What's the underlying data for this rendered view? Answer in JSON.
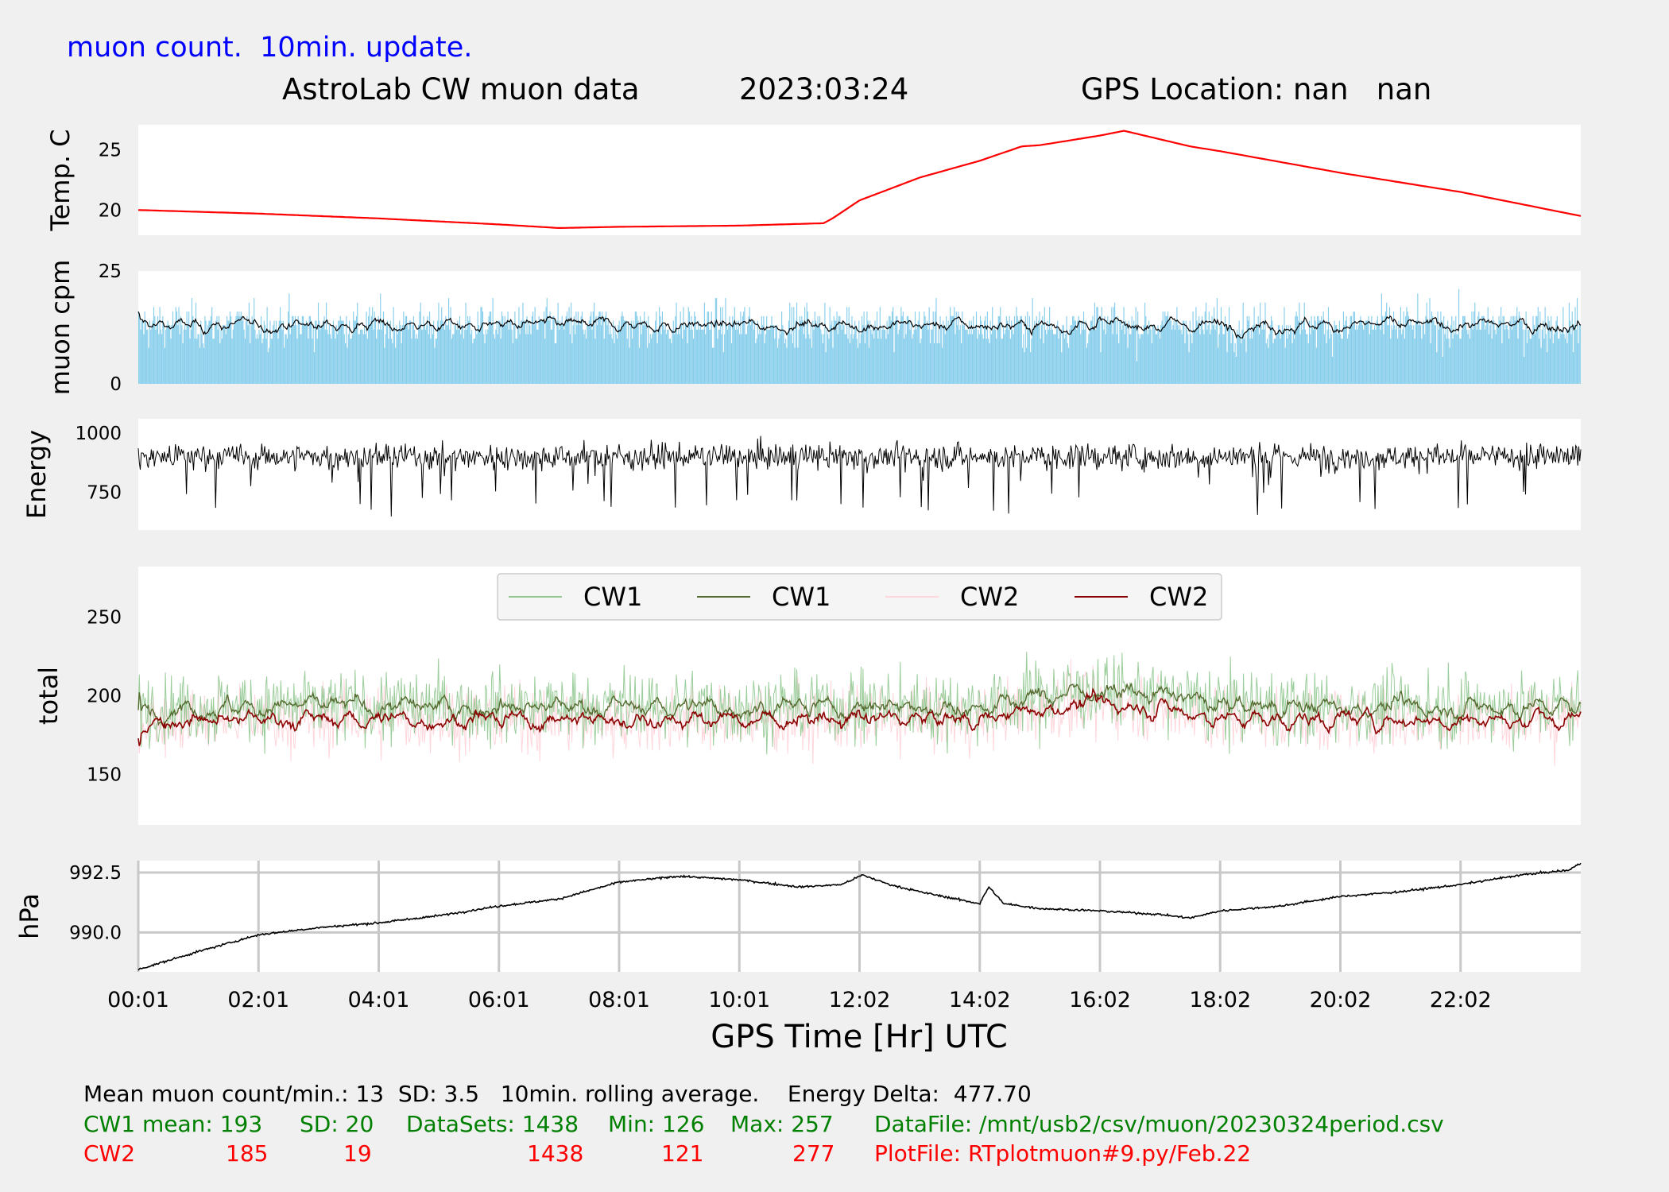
{
  "header": {
    "update_note": "muon count.  10min. update.",
    "title": "AstroLab CW muon data",
    "date": "2023:03:24",
    "gps_location": "GPS Location: nan   nan"
  },
  "chart_data": [
    {
      "type": "line",
      "ylabel": "Temp. C",
      "yticks": [
        20,
        25
      ],
      "ylim": [
        17.9,
        27.1
      ],
      "series": [
        {
          "color": "#ff0000",
          "points": [
            [
              0,
              20
            ],
            [
              2,
              19.7
            ],
            [
              4,
              19.3
            ],
            [
              6,
              18.8
            ],
            [
              7,
              18.5
            ],
            [
              8,
              18.6
            ],
            [
              10,
              18.7
            ],
            [
              11.4,
              18.9
            ],
            [
              11.55,
              19.3
            ],
            [
              12,
              20.8
            ],
            [
              13,
              22.7
            ],
            [
              14,
              24.1
            ],
            [
              14.7,
              25.3
            ],
            [
              15,
              25.4
            ],
            [
              16,
              26.2
            ],
            [
              16.4,
              26.6
            ],
            [
              17.5,
              25.3
            ],
            [
              18,
              24.9
            ],
            [
              20,
              23.1
            ],
            [
              22,
              21.5
            ],
            [
              24,
              19.5
            ]
          ]
        }
      ],
      "grid": false
    },
    {
      "type": "bar+line",
      "ylabel": "muon cpm",
      "yticks": [
        0,
        25
      ],
      "ylim": [
        0,
        25
      ],
      "series": [
        {
          "kind": "bar",
          "color": "#87ceeb",
          "mean": 13,
          "sd": 3.5,
          "n": 1438
        },
        {
          "kind": "line",
          "color": "#000000",
          "description_window": "10min. rolling average"
        }
      ],
      "grid": false
    },
    {
      "type": "line",
      "ylabel": "Energy",
      "yticks": [
        750,
        1000
      ],
      "ylim": [
        590,
        1060
      ],
      "series": [
        {
          "color": "#000000",
          "center": 900,
          "spread": 70
        }
      ],
      "grid": false
    },
    {
      "type": "line",
      "ylabel": "total",
      "yticks": [
        150,
        200,
        250
      ],
      "ylim": [
        118,
        282
      ],
      "legend": {
        "placement": "top-center",
        "entries": [
          {
            "label": "CW1",
            "color": "#90c890"
          },
          {
            "label": "CW1",
            "color": "#556b2f"
          },
          {
            "label": "CW2",
            "color": "#ffd6dc"
          },
          {
            "label": "CW2",
            "color": "#8b0000"
          }
        ]
      },
      "series": [
        {
          "name": "CW1",
          "kind": "raw",
          "color": "#90c890",
          "mean": 193,
          "sd": 20
        },
        {
          "name": "CW1",
          "kind": "average",
          "color": "#556b2f",
          "mean": 193
        },
        {
          "name": "CW2",
          "kind": "raw",
          "color": "#ffd6dc",
          "mean": 185,
          "sd": 19
        },
        {
          "name": "CW2",
          "kind": "average",
          "color": "#8b0000",
          "mean": 185
        }
      ],
      "grid": false
    },
    {
      "type": "line",
      "ylabel": "hPa",
      "yticks": [
        990.0,
        992.5
      ],
      "ytick_labels": [
        "990.0",
        "992.5"
      ],
      "ylim": [
        988.35,
        993.0
      ],
      "series": [
        {
          "color": "#000000",
          "points": [
            [
              0,
              988.45
            ],
            [
              1,
              989.2
            ],
            [
              2,
              989.9
            ],
            [
              3,
              990.2
            ],
            [
              4,
              990.4
            ],
            [
              5,
              990.7
            ],
            [
              6,
              991.1
            ],
            [
              7,
              991.4
            ],
            [
              8,
              992.1
            ],
            [
              9,
              992.35
            ],
            [
              10,
              992.2
            ],
            [
              11,
              991.9
            ],
            [
              11.7,
              992.0
            ],
            [
              12.05,
              992.4
            ],
            [
              12.5,
              992.0
            ],
            [
              13,
              991.7
            ],
            [
              14,
              991.2
            ],
            [
              14.15,
              991.9
            ],
            [
              14.4,
              991.2
            ],
            [
              15,
              991.0
            ],
            [
              16,
              990.9
            ],
            [
              17,
              990.75
            ],
            [
              17.5,
              990.6
            ],
            [
              18,
              990.9
            ],
            [
              19,
              991.1
            ],
            [
              20,
              991.5
            ],
            [
              21,
              991.7
            ],
            [
              22,
              992.0
            ],
            [
              23,
              992.4
            ],
            [
              23.8,
              992.6
            ],
            [
              24,
              992.9
            ]
          ]
        }
      ],
      "grid": true,
      "xlabel": "GPS Time  [Hr] UTC",
      "xticks": [
        "00:01",
        "02:01",
        "04:01",
        "06:01",
        "08:01",
        "10:01",
        "12:02",
        "14:02",
        "16:02",
        "18:02",
        "20:02",
        "22:02"
      ]
    }
  ],
  "footer": {
    "line1": "Mean muon count/min.: 13  SD: 3.5   10min. rolling average.    Energy Delta:  477.70",
    "cw1": {
      "label": "CW1 mean: 193",
      "sd": "SD: 20",
      "datasets": "DataSets: 1438",
      "min": "Min: 126",
      "max": "Max: 257",
      "file": "DataFile: /mnt/usb2/csv/muon/20230324period.csv"
    },
    "cw2": {
      "label": "CW2",
      "mean": "185",
      "sd": "19",
      "datasets": "1438",
      "min": "121",
      "max": "277",
      "file": "PlotFile: RTplotmuon#9.py/Feb.22"
    }
  }
}
